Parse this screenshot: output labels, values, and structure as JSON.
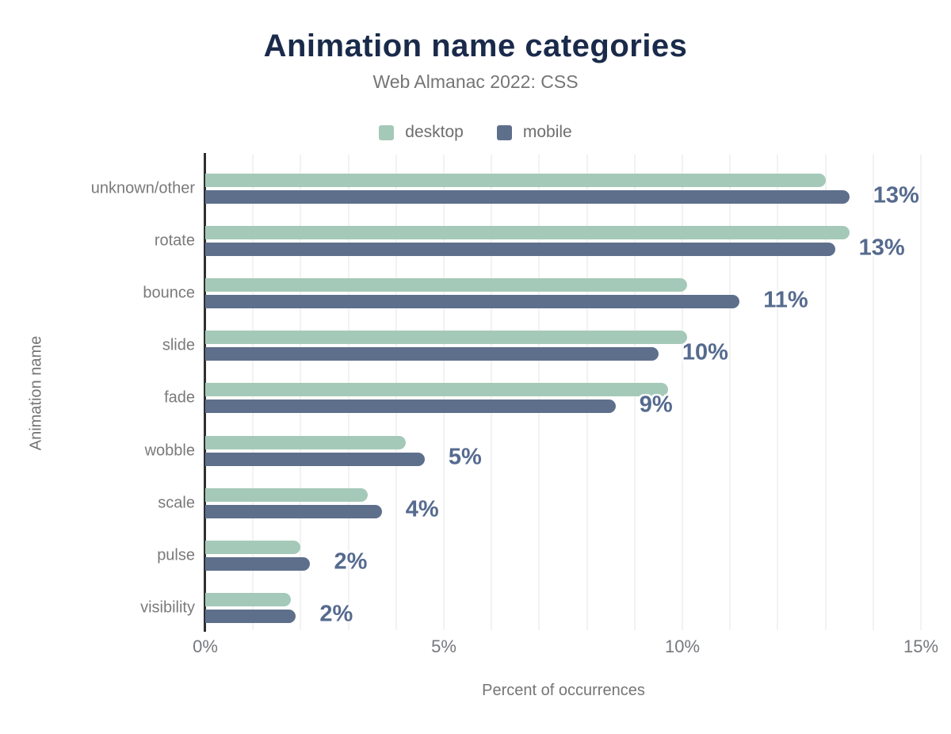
{
  "header": {
    "title": "Animation name categories",
    "subtitle": "Web Almanac 2022: CSS"
  },
  "legend": [
    {
      "label": "desktop",
      "color": "#a5c9b8"
    },
    {
      "label": "mobile",
      "color": "#5e6f8c"
    }
  ],
  "colors": {
    "title": "#1a2a4a",
    "desktop_bar": "#a5c9b8",
    "mobile_bar": "#5e6f8c",
    "value_label": "#556a8e",
    "muted_text": "#757575",
    "axis_line": "#2f2f2f",
    "gridline": "#f2f2f2",
    "background": "#ffffff"
  },
  "chart_data": {
    "type": "bar",
    "orientation": "horizontal",
    "title": "Animation name categories",
    "subtitle": "Web Almanac 2022: CSS",
    "xlabel": "Percent of occurrences",
    "ylabel": "Animation name",
    "xlim": [
      0,
      15
    ],
    "x_ticks": [
      {
        "value": 0,
        "label": "0%"
      },
      {
        "value": 5,
        "label": "5%"
      },
      {
        "value": 10,
        "label": "10%"
      },
      {
        "value": 15,
        "label": "15%"
      }
    ],
    "grid": "vertical, minor gridline every 1%",
    "legend_position": "top",
    "categories": [
      "unknown/other",
      "rotate",
      "bounce",
      "slide",
      "fade",
      "wobble",
      "scale",
      "pulse",
      "visibility"
    ],
    "series": [
      {
        "name": "desktop",
        "color": "#a5c9b8",
        "values": [
          13.0,
          13.5,
          10.1,
          10.1,
          9.7,
          4.2,
          3.4,
          2.0,
          1.8
        ]
      },
      {
        "name": "mobile",
        "color": "#5e6f8c",
        "values": [
          13.5,
          13.2,
          11.2,
          9.5,
          8.6,
          4.6,
          3.7,
          2.2,
          1.9
        ]
      }
    ],
    "value_labels": [
      "13%",
      "13%",
      "11%",
      "10%",
      "9%",
      "5%",
      "4%",
      "2%",
      "2%"
    ]
  }
}
